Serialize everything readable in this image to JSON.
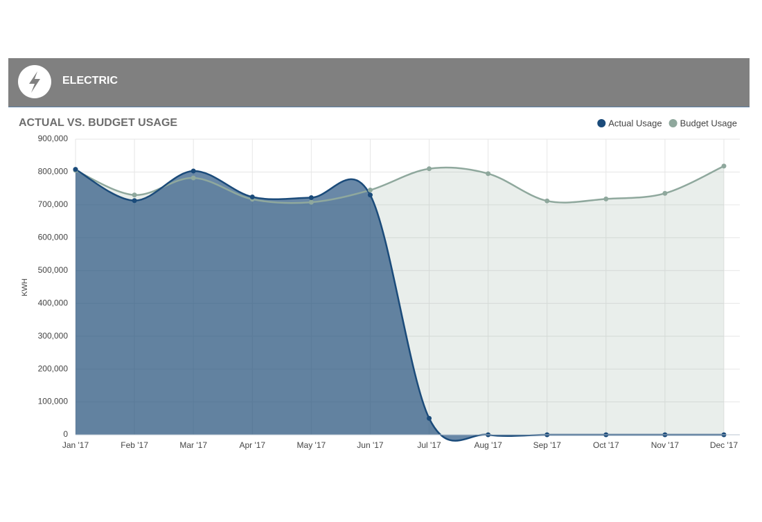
{
  "header": "ELECTRIC",
  "chart_data": {
    "type": "area-spline",
    "title": "ACTUAL VS. BUDGET USAGE",
    "y_label": "KWH",
    "categories": [
      "Jan '17",
      "Feb '17",
      "Mar '17",
      "Apr '17",
      "May '17",
      "Jun '17",
      "Jul '17",
      "Aug '17",
      "Sep '17",
      "Oct '17",
      "Nov '17",
      "Dec '17"
    ],
    "series": [
      {
        "name": "Actual Usage",
        "color": "#1b4b7a",
        "values": [
          808000,
          713000,
          803000,
          724000,
          722000,
          730000,
          50000,
          0,
          0,
          0,
          0,
          0
        ]
      },
      {
        "name": "Budget Usage",
        "color": "#8fa89d",
        "values": [
          805000,
          730000,
          782000,
          717000,
          708000,
          745000,
          810000,
          795000,
          712000,
          718000,
          735000,
          818000
        ]
      }
    ],
    "ylim": [
      0,
      900000
    ],
    "yticks": [
      0,
      {
        "value": 100000,
        "label": "100,000"
      },
      {
        "value": 200000,
        "label": "200,000"
      },
      {
        "value": 300000,
        "label": "300,000"
      },
      {
        "value": 400000,
        "label": "400,000"
      },
      {
        "value": 500000,
        "label": "500,000"
      },
      {
        "value": 600000,
        "label": "600,000"
      },
      {
        "value": 700000,
        "label": "700,000"
      },
      {
        "value": 800000,
        "label": "800,000"
      },
      {
        "value": 900000,
        "label": "900,000"
      }
    ],
    "grid": true,
    "legend": "top-right"
  }
}
